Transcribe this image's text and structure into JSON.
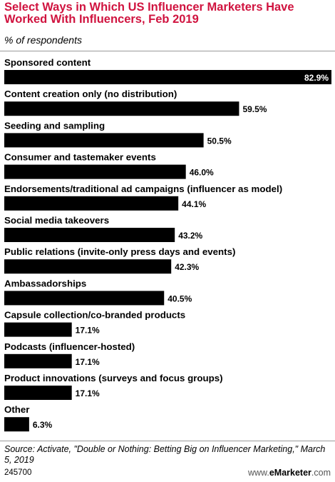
{
  "header": {
    "title": "Select Ways in Which US Influencer Marketers Have Worked With Influencers, Feb 2019",
    "subtitle": "% of respondents"
  },
  "footer": {
    "source": "Source: Activate, \"Double or Nothing: Betting Big on Influencer Marketing,\" March 5, 2019",
    "chart_id": "245700",
    "brand_prefix": "www.",
    "brand_name": "eMarketer",
    "brand_suffix": ".com"
  },
  "chart_data": {
    "type": "bar",
    "orientation": "horizontal",
    "title": "Select Ways in Which US Influencer Marketers Have Worked With Influencers, Feb 2019",
    "subtitle": "% of respondents",
    "xlim": [
      0,
      82.9
    ],
    "grid": false,
    "bar_color": "#000000",
    "categories": [
      "Sponsored content",
      "Content creation only (no distribution)",
      "Seeding and sampling",
      "Consumer and tastemaker events",
      "Endorsements/traditional ad campaigns (influencer as model)",
      "Social media takeovers",
      "Public relations (invite-only press days and events)",
      "Ambassadorships",
      "Capsule collection/co-branded products",
      "Podcasts (influencer-hosted)",
      "Product innovations (surveys and focus groups)",
      "Other"
    ],
    "values": [
      82.9,
      59.5,
      50.5,
      46.0,
      44.1,
      43.2,
      42.3,
      40.5,
      17.1,
      17.1,
      17.1,
      6.3
    ],
    "value_labels": [
      "82.9%",
      "59.5%",
      "50.5%",
      "46.0%",
      "44.1%",
      "43.2%",
      "42.3%",
      "40.5%",
      "17.1%",
      "17.1%",
      "17.1%",
      "6.3%"
    ]
  }
}
